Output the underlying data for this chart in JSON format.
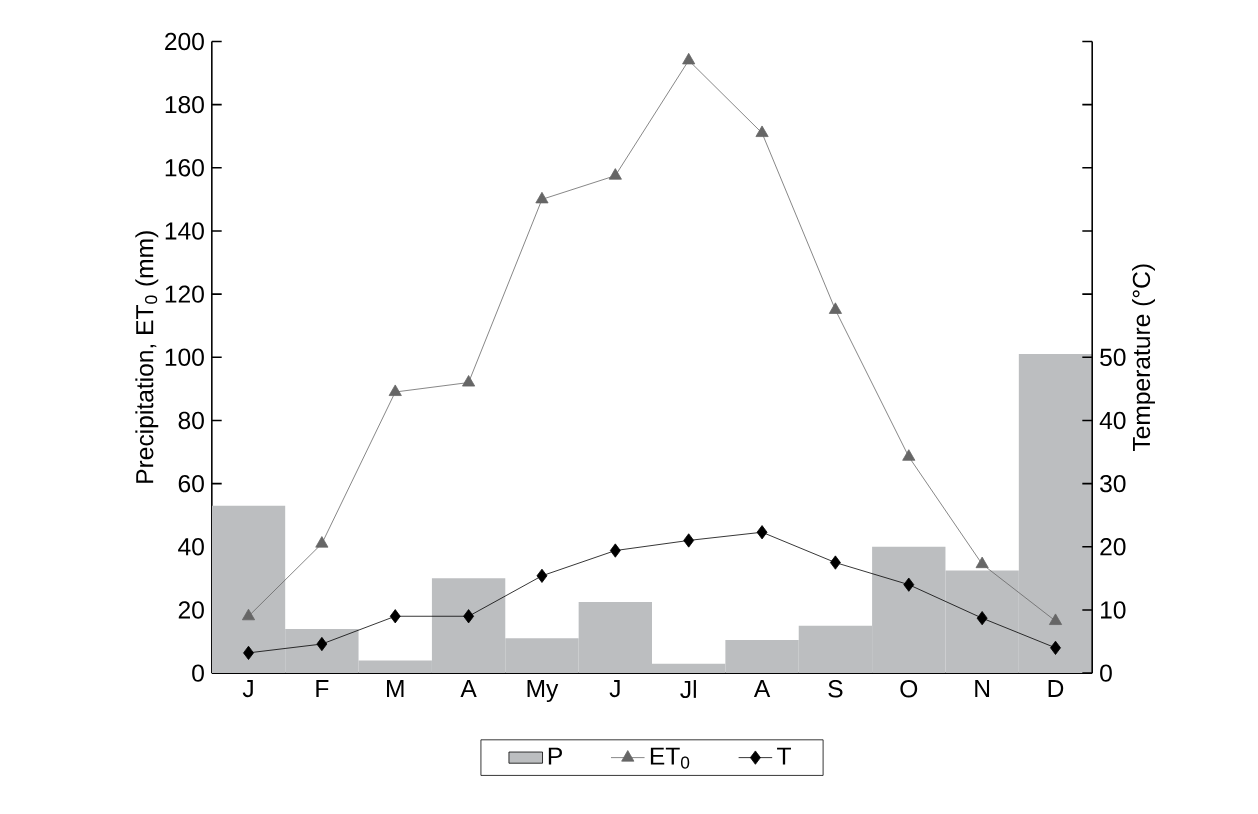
{
  "chart_data": {
    "type": "bar",
    "ylabel": "Precipitation, ET$_{0}$ (mm)",
    "y2label": "Temperature (°C)",
    "categories": [
      "J",
      "F",
      "M",
      "A",
      "My",
      "J",
      "Jl",
      "A",
      "S",
      "O",
      "N",
      "D"
    ],
    "series": [
      {
        "name": "P",
        "color": "#bcbec0",
        "values": [
          53,
          14,
          4,
          30,
          11,
          22.5,
          3,
          10.5,
          15,
          40,
          32.5,
          101
        ]
      },
      {
        "name": "ET$_{0}$",
        "type": "line",
        "marker": "triangle",
        "color": "#666666",
        "values": [
          18,
          41,
          89,
          92,
          150,
          157.5,
          194,
          171,
          115,
          68.5,
          34.5,
          16.5
        ]
      },
      {
        "name": "T",
        "type": "line",
        "marker": "diamond",
        "axis": "y2",
        "color": "#000000",
        "values": [
          3.2,
          4.6,
          9,
          9,
          15.4,
          19.4,
          21,
          22.3,
          17.5,
          14,
          8.7,
          4
        ]
      }
    ],
    "ylim": [
      0,
      200
    ],
    "yticks": [
      0,
      20,
      40,
      60,
      80,
      100,
      120,
      140,
      160,
      180,
      200
    ],
    "y2lim": [
      0,
      100
    ],
    "y2ticks": [
      0,
      10,
      20,
      30,
      40,
      50,
      {
        "value": 60,
        "label": null
      },
      {
        "value": 70,
        "label": null
      },
      {
        "value": 80,
        "label": null
      },
      {
        "value": 90,
        "label": null
      },
      {
        "value": 100,
        "label": null
      }
    ],
    "grid": false,
    "legend": "bottom"
  }
}
